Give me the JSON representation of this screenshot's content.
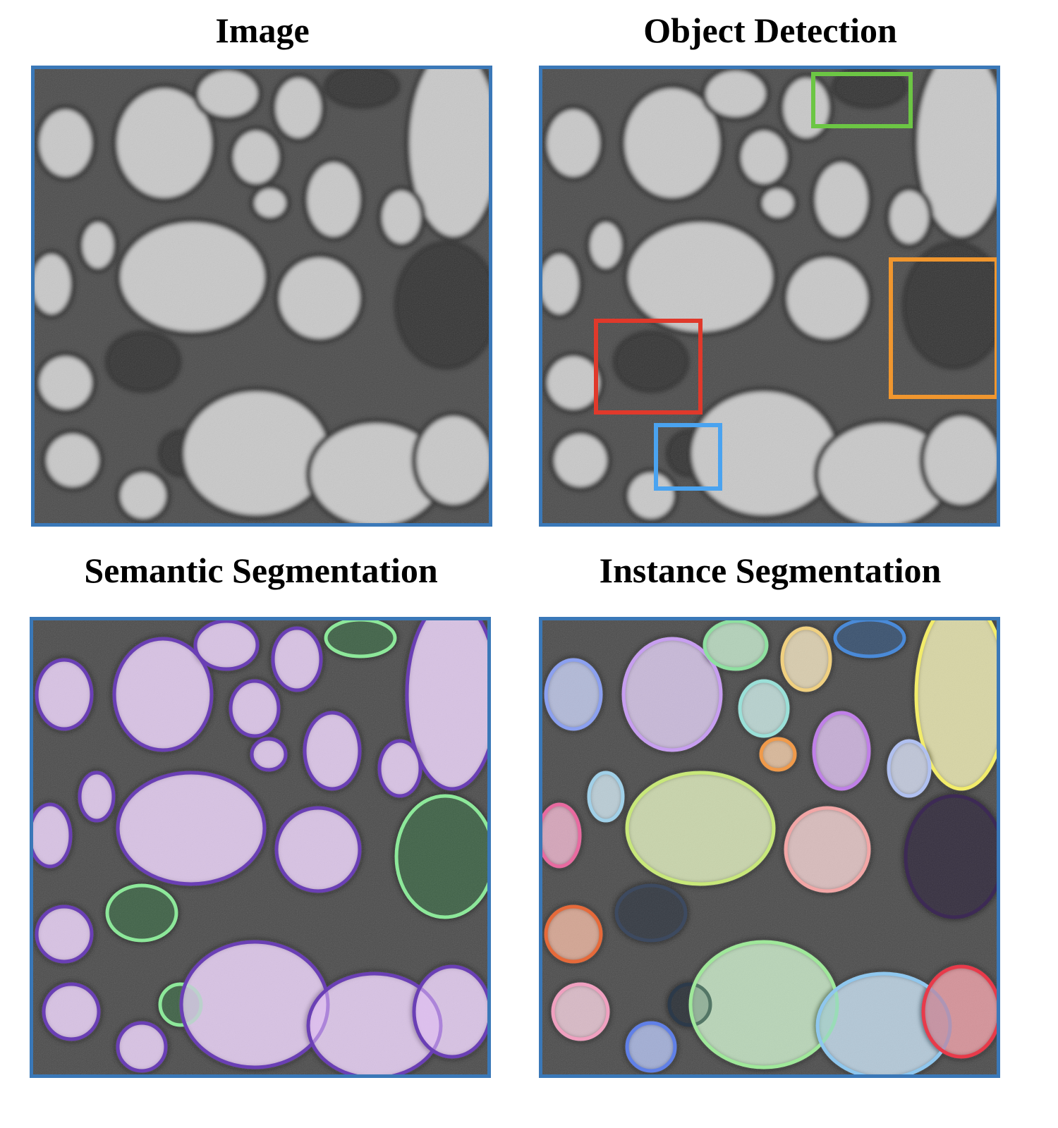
{
  "panels": [
    {
      "title": "Image",
      "mode": "image"
    },
    {
      "title": "Object Detection",
      "mode": "detection"
    },
    {
      "title": "Semantic Segmentation",
      "mode": "semantic"
    },
    {
      "title": "Instance Segmentation",
      "mode": "instance"
    }
  ],
  "colors": {
    "panel_border": "#3a78b8",
    "semantic_light_outline": "#6a3fb5",
    "semantic_dark_outline": "#8de89a",
    "detection_boxes": [
      "#6cc644",
      "#f0962e",
      "#e0392b",
      "#4aa3f0"
    ]
  }
}
